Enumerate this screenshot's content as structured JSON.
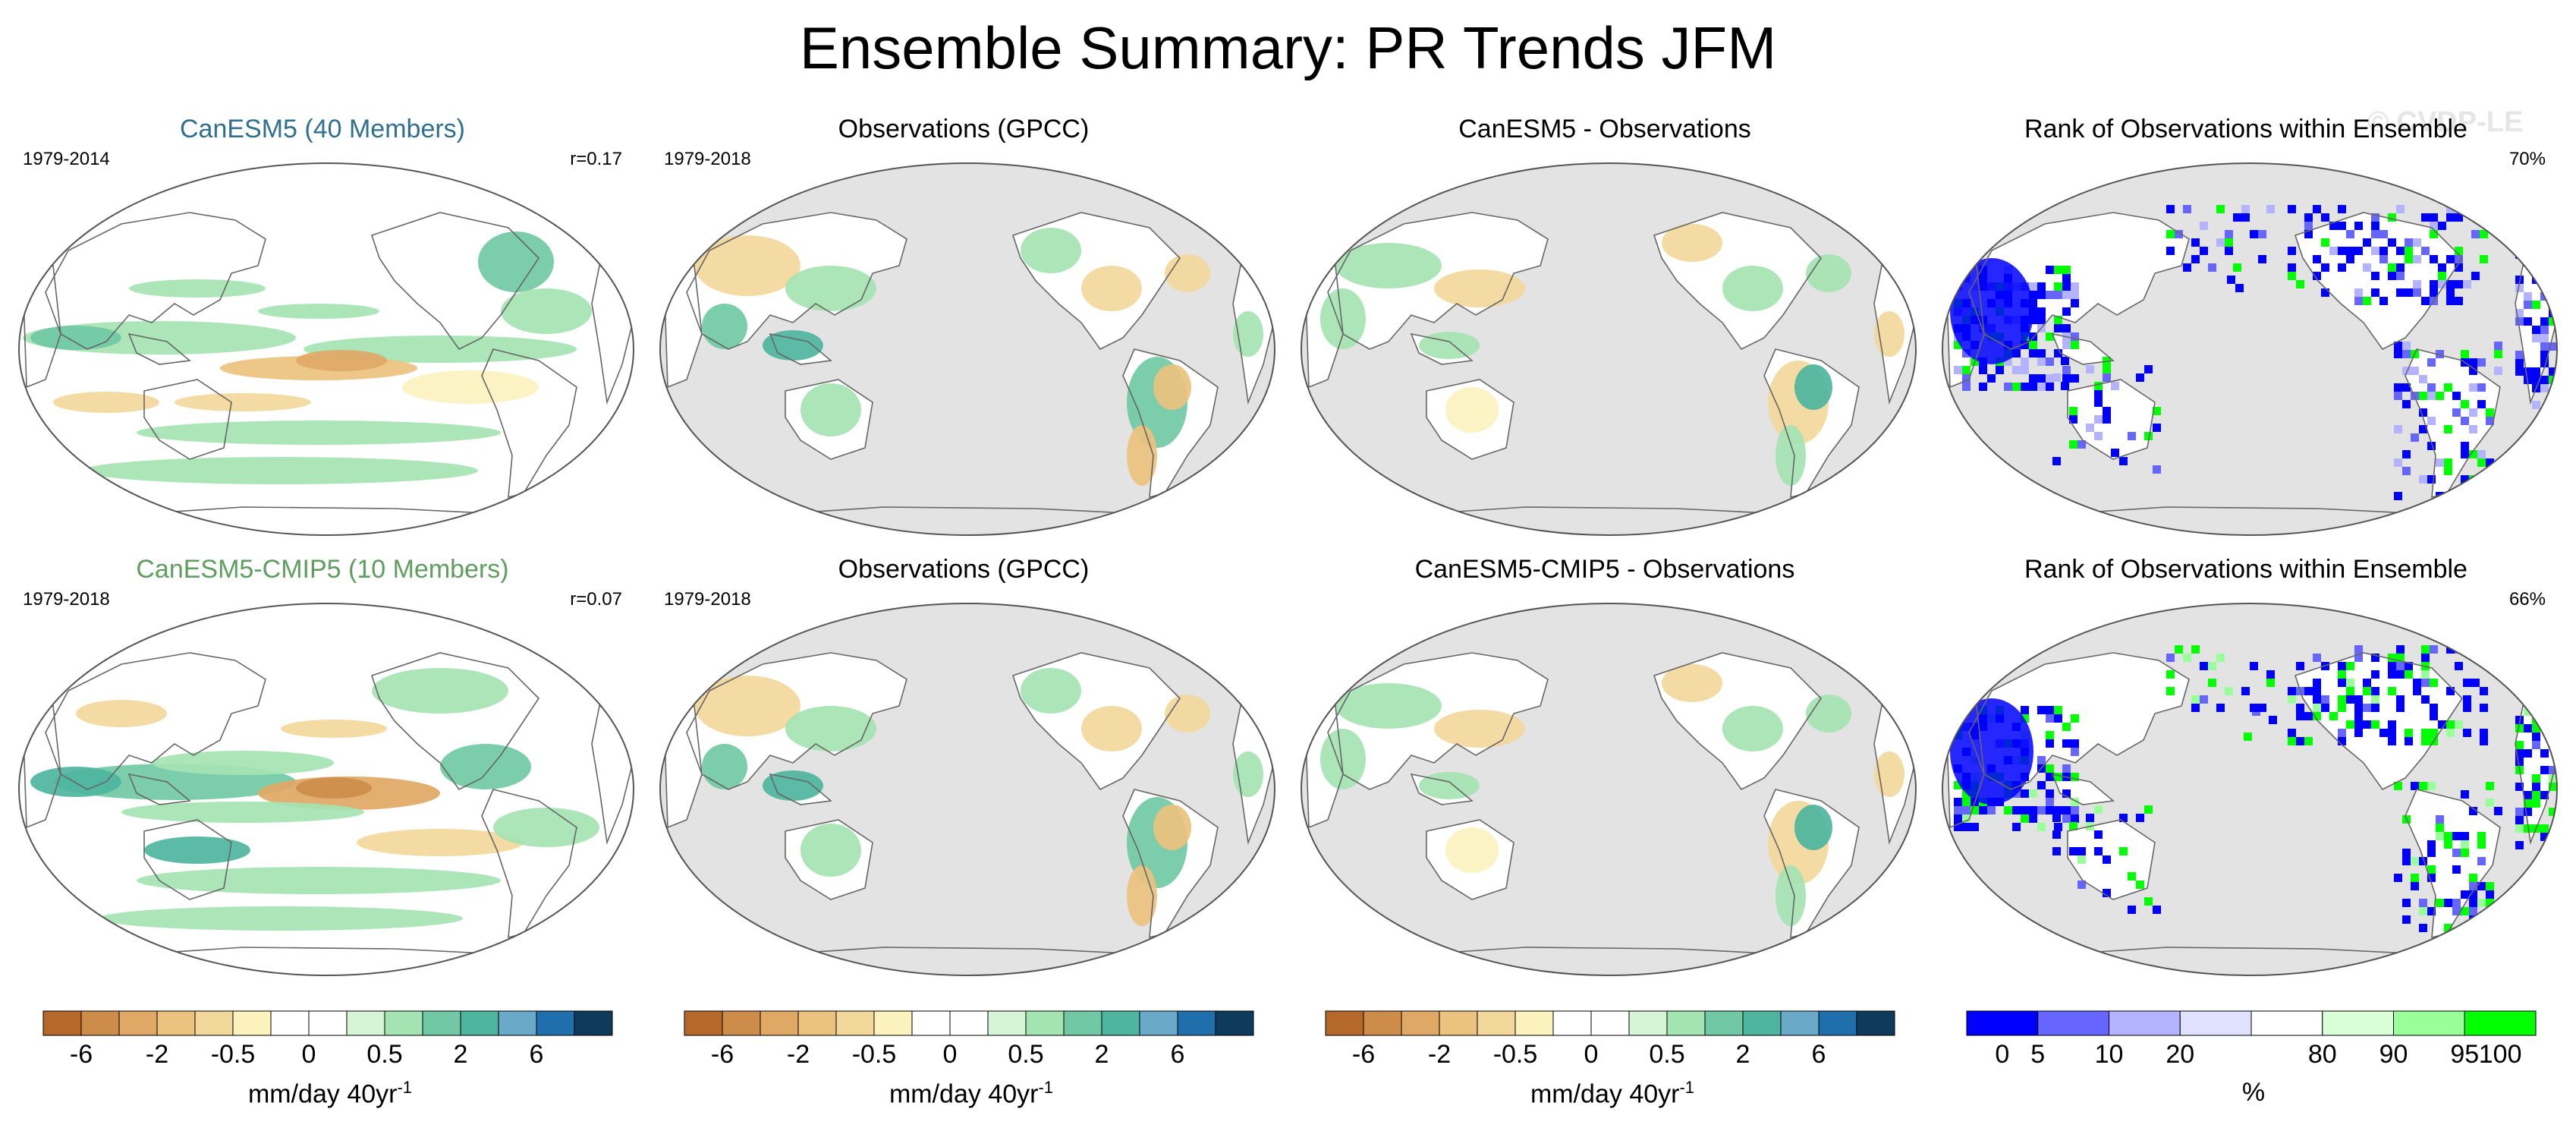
{
  "title": "Ensemble Summary: PR Trends JFM",
  "watermark": "© CVDP-LE",
  "rows": [
    {
      "panels": [
        {
          "title": "CanESM5 (40 Members)",
          "title_color": "#2f6f8f",
          "period": "1979-2014",
          "stat": "r=0.17",
          "kind": "model",
          "pattern": "row1-model"
        },
        {
          "title": "Observations (GPCC)",
          "title_color": "#000000",
          "period": "1979-2018",
          "stat": "",
          "kind": "obs",
          "pattern": "obs"
        },
        {
          "title": "CanESM5 - Observations",
          "title_color": "#000000",
          "period": "",
          "stat": "",
          "kind": "diff",
          "pattern": "diff"
        },
        {
          "title": "Rank of Observations within Ensemble",
          "title_color": "#000000",
          "period": "",
          "stat": "70%",
          "kind": "rank",
          "pattern": "rank1"
        }
      ]
    },
    {
      "panels": [
        {
          "title": "CanESM5-CMIP5 (10 Members)",
          "title_color": "#5e9e5e",
          "period": "1979-2018",
          "stat": "r=0.07",
          "kind": "model",
          "pattern": "row2-model"
        },
        {
          "title": "Observations (GPCC)",
          "title_color": "#000000",
          "period": "1979-2018",
          "stat": "",
          "kind": "obs",
          "pattern": "obs"
        },
        {
          "title": "CanESM5-CMIP5 - Observations",
          "title_color": "#000000",
          "period": "",
          "stat": "",
          "kind": "diff",
          "pattern": "diff"
        },
        {
          "title": "Rank of Observations within Ensemble",
          "title_color": "#000000",
          "period": "",
          "stat": "66%",
          "kind": "rank",
          "pattern": "rank2"
        }
      ]
    }
  ],
  "colors": {
    "ocean_land_missing": "#e3e3e3",
    "map_outline": "#555555",
    "coast": "#666666"
  },
  "trend_colorbar": {
    "colors": [
      "#b4692a",
      "#cd8c4a",
      "#e0a865",
      "#ebc27e",
      "#f2d89b",
      "#fbf2be",
      "#ffffff",
      "#ffffff",
      "#d6f5d6",
      "#a4e3b2",
      "#70c9a4",
      "#4db59e",
      "#6aa9c7",
      "#1f6fad",
      "#0e3a5c"
    ],
    "tick_labels": [
      "-6",
      "-2",
      "-0.5",
      "0",
      "0.5",
      "2",
      "6"
    ],
    "tick_positions_idx": [
      1,
      3,
      5,
      7,
      9,
      11,
      13
    ],
    "unit": "mm/day 40yr",
    "unit_sup": "-1"
  },
  "rank_colorbar": {
    "colors": [
      "#0000ff",
      "#6666ff",
      "#b3b3ff",
      "#e0e0ff",
      "#ffffff",
      "#d9ffd9",
      "#99ff99",
      "#00ff00"
    ],
    "tick_labels": [
      "0",
      "5",
      "10",
      "20",
      "80",
      "90",
      "95",
      "100"
    ],
    "tick_positions_idx": [
      0.5,
      1,
      2,
      3,
      5,
      6,
      7,
      7.5
    ],
    "unit": "%"
  }
}
